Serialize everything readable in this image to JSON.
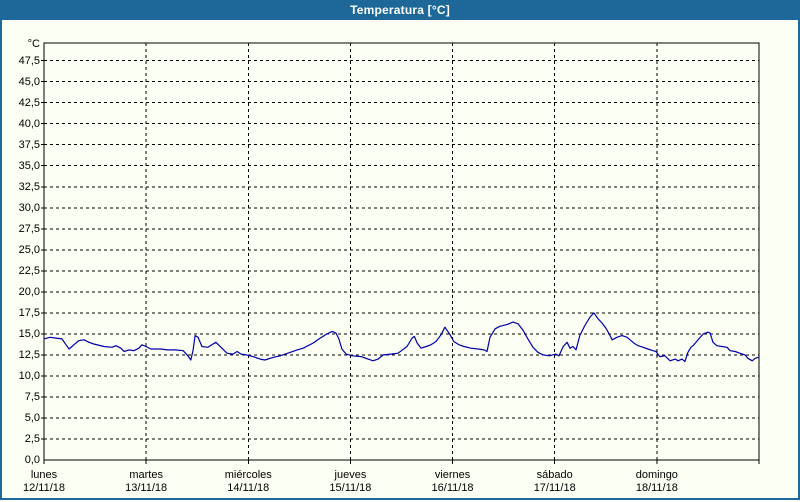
{
  "window": {
    "title": "Temperatura [°C]"
  },
  "colors": {
    "titlebar": "#1d6899",
    "window_border": "#1d6899",
    "background": "#fcfff4",
    "grid": "#000000",
    "line": "#0000aa",
    "title_text": "#ffffff",
    "axis_text": "#000000"
  },
  "chart_data": {
    "type": "line",
    "title": "Temperatura [°C]",
    "grid": "dashed",
    "legend": "none",
    "y_axis": {
      "unit": "°C",
      "min": 0,
      "max": 49.6,
      "tick_step": 2.5,
      "ticks": [
        {
          "value": 0,
          "label": "0,0"
        },
        {
          "value": 2.5,
          "label": "2,5"
        },
        {
          "value": 5,
          "label": "5,0"
        },
        {
          "value": 7.5,
          "label": "7,5"
        },
        {
          "value": 10,
          "label": "10,0"
        },
        {
          "value": 12.5,
          "label": "12,5"
        },
        {
          "value": 15,
          "label": "15,0"
        },
        {
          "value": 17.5,
          "label": "17,5"
        },
        {
          "value": 20,
          "label": "20,0"
        },
        {
          "value": 22.5,
          "label": "22,5"
        },
        {
          "value": 25,
          "label": "25,0"
        },
        {
          "value": 27.5,
          "label": "27,5"
        },
        {
          "value": 30,
          "label": "30,0"
        },
        {
          "value": 32.5,
          "label": "32,5"
        },
        {
          "value": 35,
          "label": "35,0"
        },
        {
          "value": 37.5,
          "label": "37,5"
        },
        {
          "value": 40,
          "label": "40,0"
        },
        {
          "value": 42.5,
          "label": "42,5"
        },
        {
          "value": 45,
          "label": "45,0"
        },
        {
          "value": 47.5,
          "label": "47,5"
        }
      ]
    },
    "x_axis": {
      "span_hours": 168,
      "day_ticks": [
        {
          "name": "lunes",
          "date": "12/11/18"
        },
        {
          "name": "martes",
          "date": "13/11/18"
        },
        {
          "name": "miércoles",
          "date": "14/11/18"
        },
        {
          "name": "jueves",
          "date": "15/11/18"
        },
        {
          "name": "viernes",
          "date": "16/11/18"
        },
        {
          "name": "sábado",
          "date": "17/11/18"
        },
        {
          "name": "domingo",
          "date": "18/11/18"
        }
      ]
    },
    "series": [
      {
        "name": "Temperatura",
        "color": "#0000aa",
        "points": [
          [
            0,
            14.4
          ],
          [
            1.4,
            14.6
          ],
          [
            2.8,
            14.5
          ],
          [
            4.2,
            14.4
          ],
          [
            5.2,
            13.7
          ],
          [
            5.9,
            13.2
          ],
          [
            7,
            13.7
          ],
          [
            8.2,
            14.2
          ],
          [
            9.4,
            14.3
          ],
          [
            10.6,
            14
          ],
          [
            11.7,
            13.8
          ],
          [
            14.1,
            13.5
          ],
          [
            16,
            13.4
          ],
          [
            16.9,
            13.6
          ],
          [
            18.1,
            13.3
          ],
          [
            18.8,
            12.9
          ],
          [
            20,
            13.1
          ],
          [
            21.1,
            13
          ],
          [
            22.3,
            13.3
          ],
          [
            23,
            13.7
          ],
          [
            24,
            13.5
          ],
          [
            25.1,
            13.2
          ],
          [
            27.5,
            13.2
          ],
          [
            28.9,
            13.1
          ],
          [
            30.8,
            13.1
          ],
          [
            32.7,
            13
          ],
          [
            33.8,
            12.4
          ],
          [
            34.5,
            11.9
          ],
          [
            35,
            13
          ],
          [
            35.5,
            14.8
          ],
          [
            36.2,
            14.6
          ],
          [
            37.1,
            13.5
          ],
          [
            38.5,
            13.4
          ],
          [
            39.7,
            13.8
          ],
          [
            40.4,
            14
          ],
          [
            41.8,
            13.3
          ],
          [
            43,
            12.7
          ],
          [
            44.4,
            12.6
          ],
          [
            45.4,
            12.9
          ],
          [
            46.3,
            12.6
          ],
          [
            47.5,
            12.5
          ],
          [
            49.1,
            12.3
          ],
          [
            50.8,
            12
          ],
          [
            51.9,
            11.9
          ],
          [
            53.8,
            12.2
          ],
          [
            55.5,
            12.4
          ],
          [
            57.8,
            12.8
          ],
          [
            59.5,
            13.1
          ],
          [
            60.9,
            13.3
          ],
          [
            63.2,
            13.9
          ],
          [
            64.9,
            14.5
          ],
          [
            66.5,
            15
          ],
          [
            67.7,
            15.3
          ],
          [
            68.6,
            15.1
          ],
          [
            69.3,
            14.4
          ],
          [
            70,
            13.2
          ],
          [
            71,
            12.6
          ],
          [
            72.4,
            12.4
          ],
          [
            74.5,
            12.3
          ],
          [
            77.3,
            11.8
          ],
          [
            78.5,
            12
          ],
          [
            79.7,
            12.5
          ],
          [
            81.5,
            12.6
          ],
          [
            83.2,
            12.7
          ],
          [
            85.3,
            13.5
          ],
          [
            86.5,
            14.5
          ],
          [
            87,
            14.7
          ],
          [
            87.7,
            13.9
          ],
          [
            88.6,
            13.3
          ],
          [
            89.8,
            13.5
          ],
          [
            90.9,
            13.7
          ],
          [
            92.1,
            14.1
          ],
          [
            93.3,
            14.9
          ],
          [
            94.2,
            15.8
          ],
          [
            95.4,
            14.9
          ],
          [
            96.3,
            14.1
          ],
          [
            97.5,
            13.7
          ],
          [
            98.7,
            13.5
          ],
          [
            100.3,
            13.3
          ],
          [
            102,
            13.2
          ],
          [
            103.4,
            13.1
          ],
          [
            104.1,
            12.9
          ],
          [
            104.8,
            14.6
          ],
          [
            106,
            15.6
          ],
          [
            107.1,
            15.9
          ],
          [
            108.8,
            16.1
          ],
          [
            110.2,
            16.4
          ],
          [
            111.4,
            16.2
          ],
          [
            112.6,
            15.4
          ],
          [
            113.7,
            14.4
          ],
          [
            114.9,
            13.4
          ],
          [
            116.1,
            12.8
          ],
          [
            117.3,
            12.5
          ],
          [
            118.7,
            12.4
          ],
          [
            120.3,
            12.6
          ],
          [
            121,
            12.4
          ],
          [
            122,
            13.5
          ],
          [
            122.9,
            14
          ],
          [
            123.6,
            13.3
          ],
          [
            124.3,
            13.5
          ],
          [
            125,
            13.1
          ],
          [
            125.9,
            14.8
          ],
          [
            127.1,
            16
          ],
          [
            128.3,
            17
          ],
          [
            129.2,
            17.5
          ],
          [
            130.2,
            16.8
          ],
          [
            131.1,
            16.3
          ],
          [
            132,
            15.7
          ],
          [
            132.8,
            15
          ],
          [
            133.5,
            14.3
          ],
          [
            134.6,
            14.6
          ],
          [
            135.8,
            14.8
          ],
          [
            137,
            14.6
          ],
          [
            137.9,
            14.2
          ],
          [
            138.6,
            13.9
          ],
          [
            139.6,
            13.6
          ],
          [
            140.8,
            13.4
          ],
          [
            141.9,
            13.2
          ],
          [
            143.1,
            13
          ],
          [
            143.8,
            12.9
          ],
          [
            144.7,
            12.3
          ],
          [
            145.9,
            12.4
          ],
          [
            147.1,
            11.8
          ],
          [
            148.3,
            12
          ],
          [
            149,
            11.8
          ],
          [
            149.9,
            12
          ],
          [
            150.6,
            11.7
          ],
          [
            151.3,
            12.8
          ],
          [
            152,
            13.4
          ],
          [
            152.7,
            13.7
          ],
          [
            153.7,
            14.3
          ],
          [
            154.9,
            15
          ],
          [
            156,
            15.2
          ],
          [
            156.5,
            15.1
          ],
          [
            157.2,
            14
          ],
          [
            158.1,
            13.6
          ],
          [
            159.3,
            13.5
          ],
          [
            160.5,
            13.4
          ],
          [
            161.2,
            13
          ],
          [
            162.4,
            12.9
          ],
          [
            163.5,
            12.7
          ],
          [
            164.7,
            12.5
          ],
          [
            165.4,
            12.1
          ],
          [
            166.4,
            11.8
          ],
          [
            167.1,
            12.1
          ],
          [
            167.8,
            12.2
          ]
        ]
      }
    ]
  }
}
